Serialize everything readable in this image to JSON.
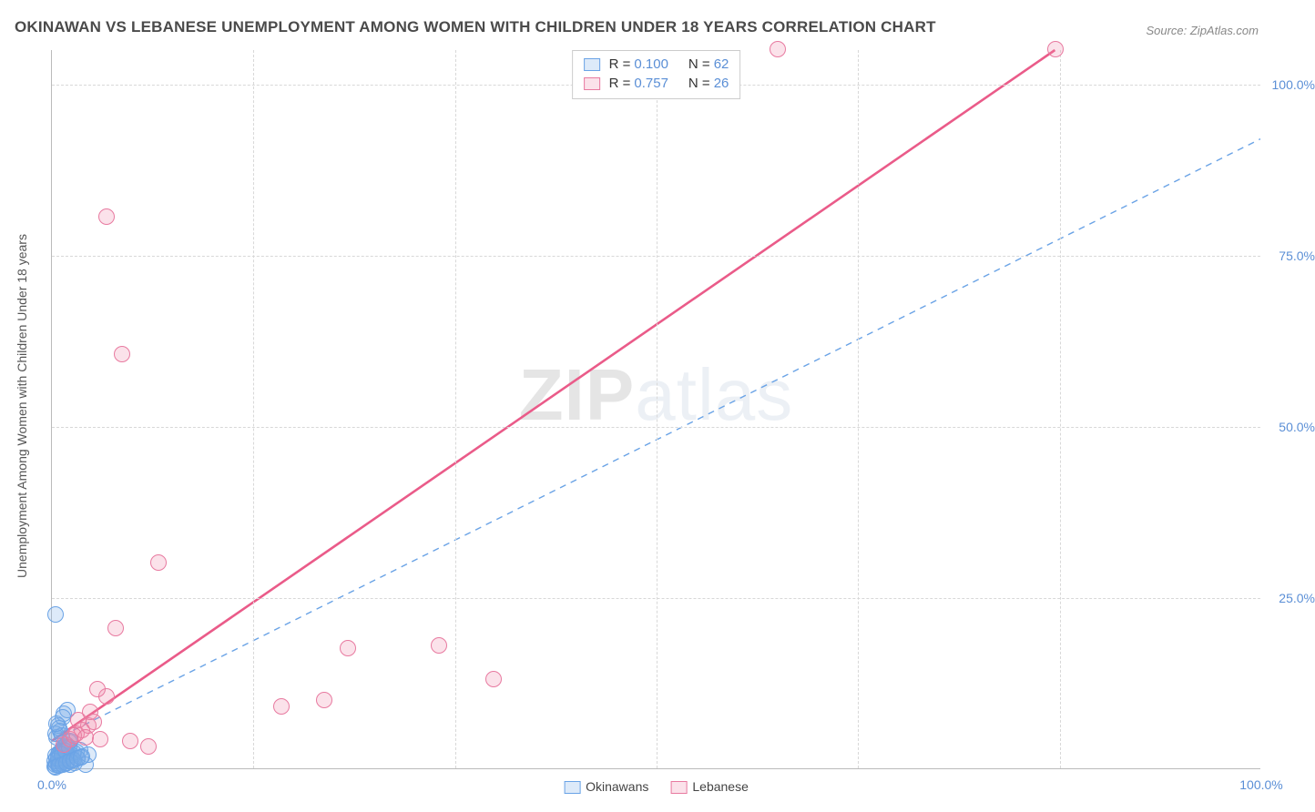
{
  "title": "OKINAWAN VS LEBANESE UNEMPLOYMENT AMONG WOMEN WITH CHILDREN UNDER 18 YEARS CORRELATION CHART",
  "source_prefix": "Source: ",
  "source_link": "ZipAtlas.com",
  "ylabel": "Unemployment Among Women with Children Under 18 years",
  "watermark_bold": "ZIP",
  "watermark_light": "atlas",
  "chart": {
    "type": "scatter",
    "xlim": [
      0,
      100
    ],
    "ylim": [
      0,
      105
    ],
    "xticks": [
      0,
      50,
      100
    ],
    "yticks": [
      25,
      50,
      75,
      100
    ],
    "xtick_labels": [
      "0.0%",
      "",
      "100.0%"
    ],
    "ytick_labels": [
      "25.0%",
      "50.0%",
      "75.0%",
      "100.0%"
    ],
    "internal_vgrid": [
      0,
      16.67,
      33.33,
      50,
      66.67,
      83.33,
      100
    ],
    "grid_color": "#d8d8d8",
    "background_color": "#ffffff",
    "axis_color": "#bbbbbb",
    "tick_label_color": "#5b8fd6",
    "series": [
      {
        "name": "Okinawans",
        "marker_fill": "rgba(120,170,230,0.25)",
        "marker_stroke": "#6aa3e6",
        "marker_radius": 9,
        "trend": {
          "x1": 0,
          "y1": 4,
          "x2": 100,
          "y2": 92,
          "style": "dashed",
          "width": 1.4,
          "color": "#6aa3e6"
        },
        "R": "0.100",
        "N": "62",
        "points": [
          [
            0.2,
            0.3
          ],
          [
            0.3,
            0.5
          ],
          [
            0.4,
            0.8
          ],
          [
            0.5,
            0.4
          ],
          [
            0.6,
            1.0
          ],
          [
            0.7,
            0.6
          ],
          [
            0.8,
            1.2
          ],
          [
            0.9,
            0.9
          ],
          [
            1.0,
            1.4
          ],
          [
            1.1,
            0.7
          ],
          [
            1.2,
            1.6
          ],
          [
            1.3,
            1.1
          ],
          [
            1.4,
            1.8
          ],
          [
            1.5,
            0.5
          ],
          [
            1.6,
            2.0
          ],
          [
            1.7,
            1.3
          ],
          [
            1.8,
            2.2
          ],
          [
            1.9,
            0.8
          ],
          [
            2.0,
            2.4
          ],
          [
            2.1,
            1.5
          ],
          [
            2.3,
            2.6
          ],
          [
            2.5,
            1.7
          ],
          [
            2.8,
            0.6
          ],
          [
            3.0,
            2.0
          ],
          [
            0.5,
            2.0
          ],
          [
            0.8,
            2.5
          ],
          [
            1.0,
            3.0
          ],
          [
            1.2,
            3.5
          ],
          [
            1.5,
            4.0
          ],
          [
            0.3,
            1.8
          ],
          [
            0.6,
            2.3
          ],
          [
            0.9,
            2.8
          ],
          [
            1.1,
            3.2
          ],
          [
            1.4,
            3.8
          ],
          [
            0.4,
            1.5
          ],
          [
            0.7,
            2.1
          ],
          [
            1.0,
            2.6
          ],
          [
            1.3,
            3.1
          ],
          [
            0.2,
            1.0
          ],
          [
            0.5,
            1.5
          ],
          [
            0.8,
            2.0
          ],
          [
            1.1,
            2.5
          ],
          [
            1.4,
            3.0
          ],
          [
            0.3,
            0.2
          ],
          [
            0.6,
            0.4
          ],
          [
            0.9,
            0.6
          ],
          [
            1.2,
            0.8
          ],
          [
            1.5,
            1.0
          ],
          [
            1.8,
            1.2
          ],
          [
            2.1,
            1.4
          ],
          [
            2.4,
            1.6
          ],
          [
            0.4,
            4.5
          ],
          [
            0.7,
            5.5
          ],
          [
            0.5,
            6.2
          ],
          [
            0.3,
            5.0
          ],
          [
            0.8,
            4.8
          ],
          [
            0.6,
            5.8
          ],
          [
            0.4,
            6.5
          ],
          [
            0.3,
            22.5
          ],
          [
            1.0,
            8.0
          ],
          [
            1.3,
            8.5
          ],
          [
            0.9,
            7.5
          ]
        ]
      },
      {
        "name": "Lebanese",
        "marker_fill": "rgba(240,140,170,0.25)",
        "marker_stroke": "#e87aa0",
        "marker_radius": 9,
        "trend": {
          "x1": 0,
          "y1": 4,
          "x2": 83,
          "y2": 105,
          "style": "solid",
          "width": 2.6,
          "color": "#ea5b89"
        },
        "R": "0.757",
        "N": "26",
        "points": [
          [
            1.0,
            3.5
          ],
          [
            1.5,
            4.2
          ],
          [
            2.0,
            5.0
          ],
          [
            2.5,
            5.6
          ],
          [
            3.0,
            6.2
          ],
          [
            3.5,
            6.8
          ],
          [
            4.0,
            4.2
          ],
          [
            4.5,
            10.5
          ],
          [
            5.3,
            20.5
          ],
          [
            6.5,
            4.0
          ],
          [
            8.0,
            3.2
          ],
          [
            3.8,
            11.5
          ],
          [
            4.5,
            80.5
          ],
          [
            8.8,
            30.0
          ],
          [
            19.0,
            9.0
          ],
          [
            22.5,
            10.0
          ],
          [
            24.5,
            17.5
          ],
          [
            32.0,
            18.0
          ],
          [
            36.5,
            13.0
          ],
          [
            60.0,
            105.0
          ],
          [
            5.8,
            60.5
          ],
          [
            83.0,
            105.0
          ],
          [
            2.2,
            7.0
          ],
          [
            3.2,
            8.2
          ],
          [
            1.8,
            4.8
          ],
          [
            2.8,
            4.5
          ]
        ]
      }
    ],
    "legend_top": {
      "rows": [
        {
          "series": 0,
          "r_label": "R =",
          "n_label": "N ="
        },
        {
          "series": 1,
          "r_label": "R =",
          "n_label": "N ="
        }
      ]
    }
  }
}
